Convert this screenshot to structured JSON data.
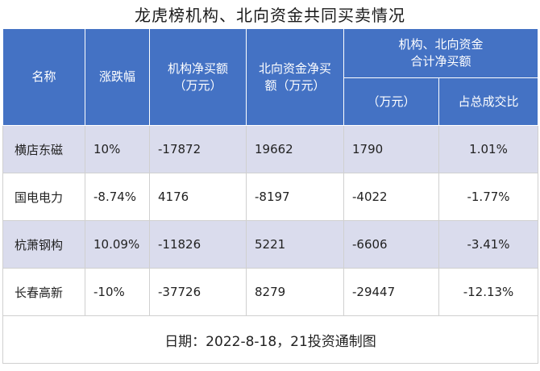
{
  "title": "龙虎榜机构、北向资金共同买卖情况",
  "columns": {
    "name": "名称",
    "change": "涨跌幅",
    "inst_net_line1": "机构净买额",
    "inst_net_line2": "（万元）",
    "north_net_line1": "北向资金净买",
    "north_net_line2": "额（万元）",
    "combined_line1": "机构、北向资金",
    "combined_line2": "合计净买额",
    "combined_amount": "（万元）",
    "combined_ratio": "占总成交比"
  },
  "rows": [
    {
      "name": "横店东磁",
      "change": "10%",
      "inst_net": "-17872",
      "north_net": "19662",
      "combined": "1790",
      "ratio": "1.01%"
    },
    {
      "name": "国电电力",
      "change": "-8.74%",
      "inst_net": "4176",
      "north_net": "-8197",
      "combined": "-4022",
      "ratio": "-1.77%"
    },
    {
      "name": "杭萧钢构",
      "change": "10.09%",
      "inst_net": "-11826",
      "north_net": "5221",
      "combined": "-6606",
      "ratio": "-3.41%"
    },
    {
      "name": "长春高新",
      "change": "-10%",
      "inst_net": "-37726",
      "north_net": "8279",
      "combined": "-29447",
      "ratio": "-12.13%"
    }
  ],
  "footer": "日期：2022-8-18，21投资通制图",
  "colors": {
    "header_bg": "#4472c4",
    "shaded_row_bg": "#dadced"
  }
}
